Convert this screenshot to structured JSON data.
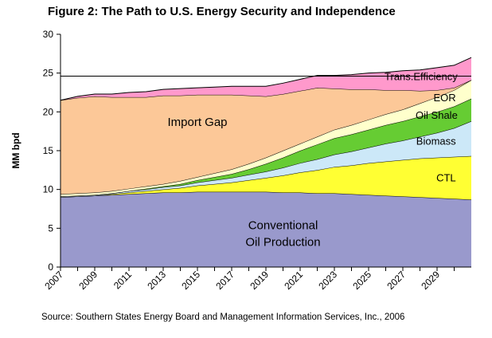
{
  "title": "Figure 2:  The Path to U.S. Energy Security and Independence",
  "source": "Source:  Southern States Energy Board and Management Information Services, Inc., 2006",
  "chart_data": {
    "type": "area",
    "stacked": true,
    "ylabel": "MM bpd",
    "xlabel": "",
    "ylim": [
      0,
      30
    ],
    "yticks": [
      0,
      5,
      10,
      15,
      20,
      25,
      30
    ],
    "xlim": [
      2007,
      2031
    ],
    "xticks": [
      "2007",
      "2009",
      "2011",
      "2013",
      "2015",
      "2017",
      "2019",
      "2021",
      "2023",
      "2025",
      "2027",
      "2029"
    ],
    "reference_line": {
      "y": 24.6,
      "x_from": 2007,
      "x_to": 2031
    },
    "x": [
      2007,
      2008,
      2009,
      2010,
      2011,
      2012,
      2013,
      2014,
      2015,
      2016,
      2017,
      2018,
      2019,
      2020,
      2021,
      2022,
      2023,
      2024,
      2025,
      2026,
      2027,
      2028,
      2029,
      2030,
      2031
    ],
    "series": [
      {
        "name": "Conventional Oil Production",
        "label_lines": [
          "Conventional",
          "Oil Production"
        ],
        "color": "#9999cc",
        "values": [
          9.0,
          9.1,
          9.2,
          9.3,
          9.4,
          9.5,
          9.6,
          9.6,
          9.7,
          9.7,
          9.7,
          9.7,
          9.7,
          9.6,
          9.6,
          9.5,
          9.5,
          9.4,
          9.3,
          9.2,
          9.1,
          9.0,
          8.9,
          8.8,
          8.7
        ]
      },
      {
        "name": "CTL",
        "label_lines": [
          "CTL"
        ],
        "color": "#ffff33",
        "values": [
          0.0,
          0.0,
          0.0,
          0.1,
          0.2,
          0.3,
          0.4,
          0.6,
          0.8,
          1.0,
          1.2,
          1.5,
          1.8,
          2.2,
          2.6,
          3.0,
          3.4,
          3.7,
          4.1,
          4.4,
          4.7,
          5.0,
          5.2,
          5.4,
          5.6
        ]
      },
      {
        "name": "Biomass",
        "label_lines": [
          "Biomass"
        ],
        "color": "#cce8f8",
        "values": [
          0.1,
          0.1,
          0.1,
          0.1,
          0.2,
          0.2,
          0.3,
          0.3,
          0.4,
          0.5,
          0.6,
          0.7,
          0.8,
          1.0,
          1.2,
          1.4,
          1.6,
          1.8,
          2.0,
          2.3,
          2.5,
          2.8,
          3.2,
          3.7,
          4.5
        ]
      },
      {
        "name": "Oil Shale",
        "label_lines": [
          "Oil Shale"
        ],
        "color": "#66cc33",
        "values": [
          0.0,
          0.0,
          0.0,
          0.0,
          0.0,
          0.1,
          0.1,
          0.2,
          0.3,
          0.4,
          0.5,
          0.7,
          1.0,
          1.3,
          1.6,
          1.9,
          2.1,
          2.2,
          2.3,
          2.4,
          2.5,
          2.6,
          2.7,
          2.8,
          2.9
        ]
      },
      {
        "name": "EOR",
        "label_lines": [
          "EOR"
        ],
        "color": "#ffffcc",
        "values": [
          0.3,
          0.3,
          0.3,
          0.3,
          0.3,
          0.3,
          0.3,
          0.4,
          0.4,
          0.5,
          0.6,
          0.7,
          0.8,
          0.9,
          0.9,
          1.0,
          1.1,
          1.2,
          1.3,
          1.4,
          1.5,
          1.7,
          1.9,
          2.1,
          2.4
        ]
      },
      {
        "name": "Import Gap",
        "label_lines": [
          "Import Gap"
        ],
        "color": "#fcc898",
        "values": [
          12.1,
          12.3,
          12.4,
          12.1,
          11.8,
          11.5,
          11.4,
          11.0,
          10.6,
          10.1,
          9.6,
          8.8,
          7.9,
          7.3,
          6.8,
          6.3,
          5.3,
          4.6,
          3.9,
          3.1,
          2.5,
          1.6,
          0.9,
          0.3,
          0.0
        ]
      },
      {
        "name": "Trans. Efficiency",
        "label_lines": [
          "Trans.Efficiency"
        ],
        "color": "#ff99cc",
        "values": [
          0.0,
          0.2,
          0.3,
          0.4,
          0.6,
          0.7,
          0.8,
          0.9,
          0.9,
          1.0,
          1.1,
          1.2,
          1.3,
          1.4,
          1.5,
          1.6,
          1.7,
          1.9,
          2.1,
          2.3,
          2.5,
          2.7,
          2.9,
          2.9,
          2.9
        ]
      }
    ]
  }
}
